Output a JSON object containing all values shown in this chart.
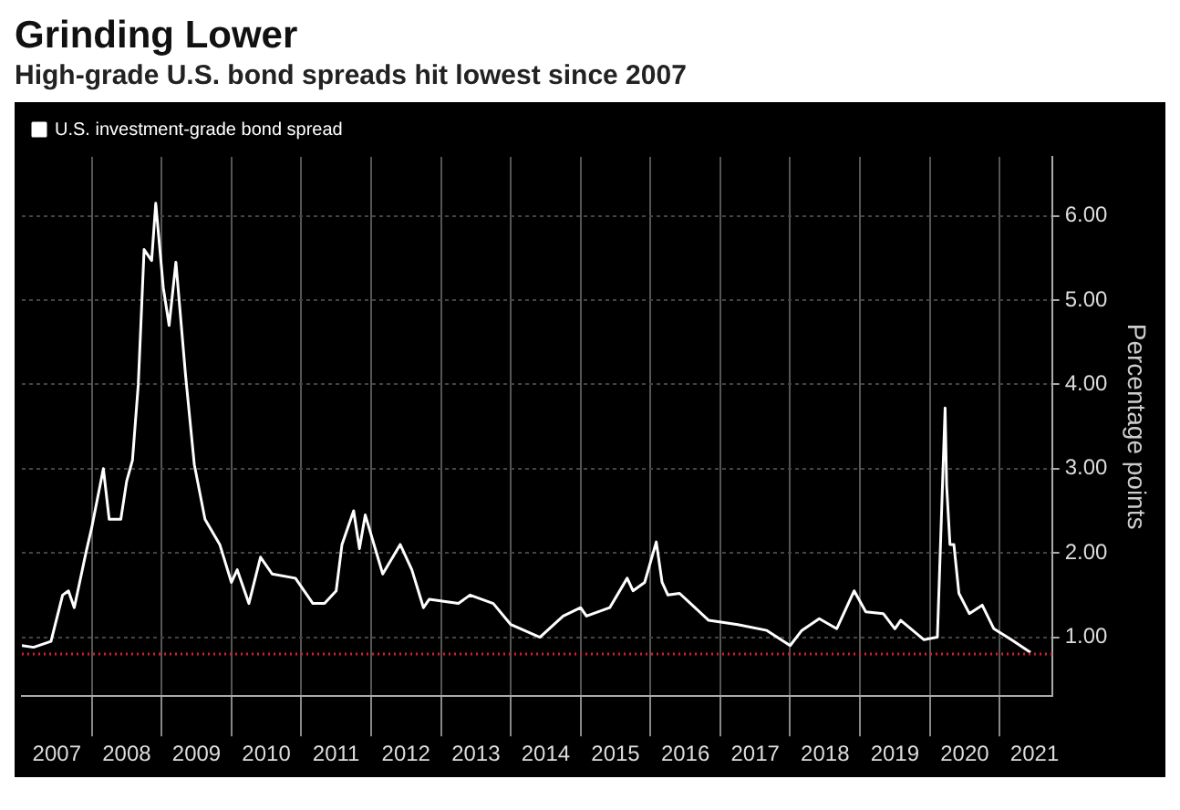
{
  "chart_data": {
    "type": "line",
    "title": "Grinding Lower",
    "subtitle": "High-grade U.S. bond spreads hit lowest since 2007",
    "ylabel": "Percentage points",
    "x": [
      "2007-01",
      "2007-03",
      "2007-06",
      "2007-08",
      "2007-09",
      "2007-10",
      "2007-12",
      "2008-01",
      "2008-03",
      "2008-04",
      "2008-06",
      "2008-07",
      "2008-08",
      "2008-09",
      "2008-10",
      "2008-11-10",
      "2008-12-01",
      "2009-01-10",
      "2009-02-10",
      "2009-03-15",
      "2009-05-05",
      "2009-06-20",
      "2009-08-15",
      "2009-11",
      "2010-01",
      "2010-02",
      "2010-04",
      "2010-06",
      "2010-08",
      "2010-12",
      "2011-03",
      "2011-05",
      "2011-07",
      "2011-08",
      "2011-10",
      "2011-11",
      "2011-12",
      "2012-03",
      "2012-06",
      "2012-08",
      "2012-10",
      "2012-11",
      "2013-04",
      "2013-06",
      "2013-10",
      "2014-01",
      "2014-06",
      "2014-10",
      "2015-01",
      "2015-02",
      "2015-06",
      "2015-09",
      "2015-10",
      "2015-12",
      "2016-02",
      "2016-03",
      "2016-04",
      "2016-06",
      "2016-11",
      "2017-04",
      "2017-09",
      "2018-01",
      "2018-03",
      "2018-06",
      "2018-09",
      "2018-12",
      "2019-02",
      "2019-05",
      "2019-07",
      "2019-08",
      "2019-12",
      "2020-02-10",
      "2020-03-20",
      "2020-03-28",
      "2020-04-15",
      "2020-05-05",
      "2020-06",
      "2020-07-25",
      "2020-10",
      "2020-12",
      "2021-03",
      "2021-06-10"
    ],
    "series": [
      {
        "name": "U.S. investment-grade bond spread",
        "color": "#ffffff",
        "values": [
          0.9,
          0.88,
          0.95,
          1.5,
          1.55,
          1.35,
          2.0,
          2.3,
          3.0,
          2.4,
          2.4,
          2.85,
          3.1,
          4.0,
          5.6,
          5.47,
          6.15,
          5.15,
          4.7,
          5.45,
          4.1,
          3.05,
          2.4,
          2.1,
          1.65,
          1.8,
          1.4,
          1.95,
          1.75,
          1.7,
          1.4,
          1.4,
          1.55,
          2.1,
          2.5,
          2.05,
          2.45,
          1.75,
          2.1,
          1.8,
          1.35,
          1.45,
          1.4,
          1.5,
          1.4,
          1.15,
          1.0,
          1.25,
          1.35,
          1.25,
          1.35,
          1.7,
          1.55,
          1.65,
          2.13,
          1.65,
          1.5,
          1.52,
          1.2,
          1.15,
          1.08,
          0.9,
          1.08,
          1.22,
          1.1,
          1.55,
          1.3,
          1.28,
          1.1,
          1.2,
          0.97,
          1.0,
          3.72,
          2.8,
          2.1,
          2.1,
          1.52,
          1.28,
          1.38,
          1.1,
          0.97,
          0.82
        ]
      }
    ],
    "xlim": [
      "2007-01",
      "2021-10"
    ],
    "xticks": [
      {
        "value": "2007-07",
        "label": "2007"
      },
      {
        "value": "2008-01",
        "label": null
      },
      {
        "value": "2008-07",
        "label": "2008"
      },
      {
        "value": "2009-01",
        "label": null
      },
      {
        "value": "2009-07",
        "label": "2009"
      },
      {
        "value": "2010-01",
        "label": null
      },
      {
        "value": "2010-07",
        "label": "2010"
      },
      {
        "value": "2011-01",
        "label": null
      },
      {
        "value": "2011-07",
        "label": "2011"
      },
      {
        "value": "2012-01",
        "label": null
      },
      {
        "value": "2012-07",
        "label": "2012"
      },
      {
        "value": "2013-01",
        "label": null
      },
      {
        "value": "2013-07",
        "label": "2013"
      },
      {
        "value": "2014-01",
        "label": null
      },
      {
        "value": "2014-07",
        "label": "2014"
      },
      {
        "value": "2015-01",
        "label": null
      },
      {
        "value": "2015-07",
        "label": "2015"
      },
      {
        "value": "2016-01",
        "label": null
      },
      {
        "value": "2016-07",
        "label": "2016"
      },
      {
        "value": "2017-01",
        "label": null
      },
      {
        "value": "2017-07",
        "label": "2017"
      },
      {
        "value": "2018-01",
        "label": null
      },
      {
        "value": "2018-07",
        "label": "2018"
      },
      {
        "value": "2019-01",
        "label": null
      },
      {
        "value": "2019-07",
        "label": "2019"
      },
      {
        "value": "2020-01",
        "label": null
      },
      {
        "value": "2020-07",
        "label": "2020"
      },
      {
        "value": "2021-01",
        "label": null
      },
      {
        "value": "2021-07",
        "label": "2021"
      }
    ],
    "ylim": [
      0.3,
      6.7
    ],
    "yticks": [
      {
        "value": 1,
        "label": "1.00"
      },
      {
        "value": 2,
        "label": "2.00"
      },
      {
        "value": 3,
        "label": "3.00"
      },
      {
        "value": 4,
        "label": "4.00"
      },
      {
        "value": 5,
        "label": "5.00"
      },
      {
        "value": 6,
        "label": "6.00"
      }
    ],
    "ref_lines": [
      {
        "axis": "y",
        "value": 0.8,
        "color": "#d02030",
        "line_style": "dotted"
      }
    ],
    "grid": true,
    "legend": "top left",
    "marker": "none",
    "line_style": "solid"
  }
}
